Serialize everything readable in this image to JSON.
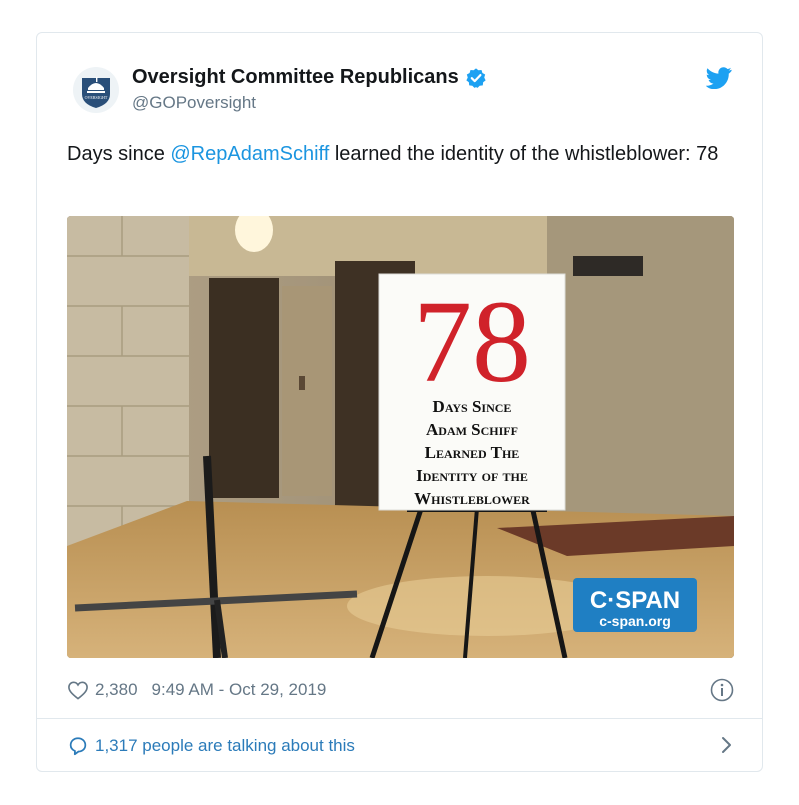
{
  "tweet": {
    "display_name": "Oversight Committee Republicans",
    "handle": "@GOPoversight",
    "text_prefix": "Days since ",
    "mention": "@RepAdamSchiff",
    "text_suffix": " learned the identity of the whistleblower: 78",
    "likes": "2,380",
    "timestamp": "9:49 AM - Oct 29, 2019",
    "talking_label": "1,317 people are talking about this"
  },
  "avatar": {
    "label": "OVERSIGHT"
  },
  "media": {
    "sign_number": "78",
    "sign_lines": [
      "Days Since",
      "Adam Schiff",
      "Learned The",
      "Identity of the",
      "Whistleblower"
    ],
    "logo_main": "C·SPAN",
    "logo_sub": "c-span.org"
  },
  "icons": {
    "verified": "verified-badge-icon",
    "twitter": "twitter-bird-icon",
    "like": "heart-icon",
    "info": "info-icon",
    "comment": "comment-bubble-icon",
    "chevron": "chevron-right-icon"
  },
  "colors": {
    "link": "#1b95e0",
    "secondary": "#657786",
    "twitter_blue": "#1da1f2",
    "sign_red": "#d0222a",
    "cspan_blue": "#1f7fc3"
  }
}
